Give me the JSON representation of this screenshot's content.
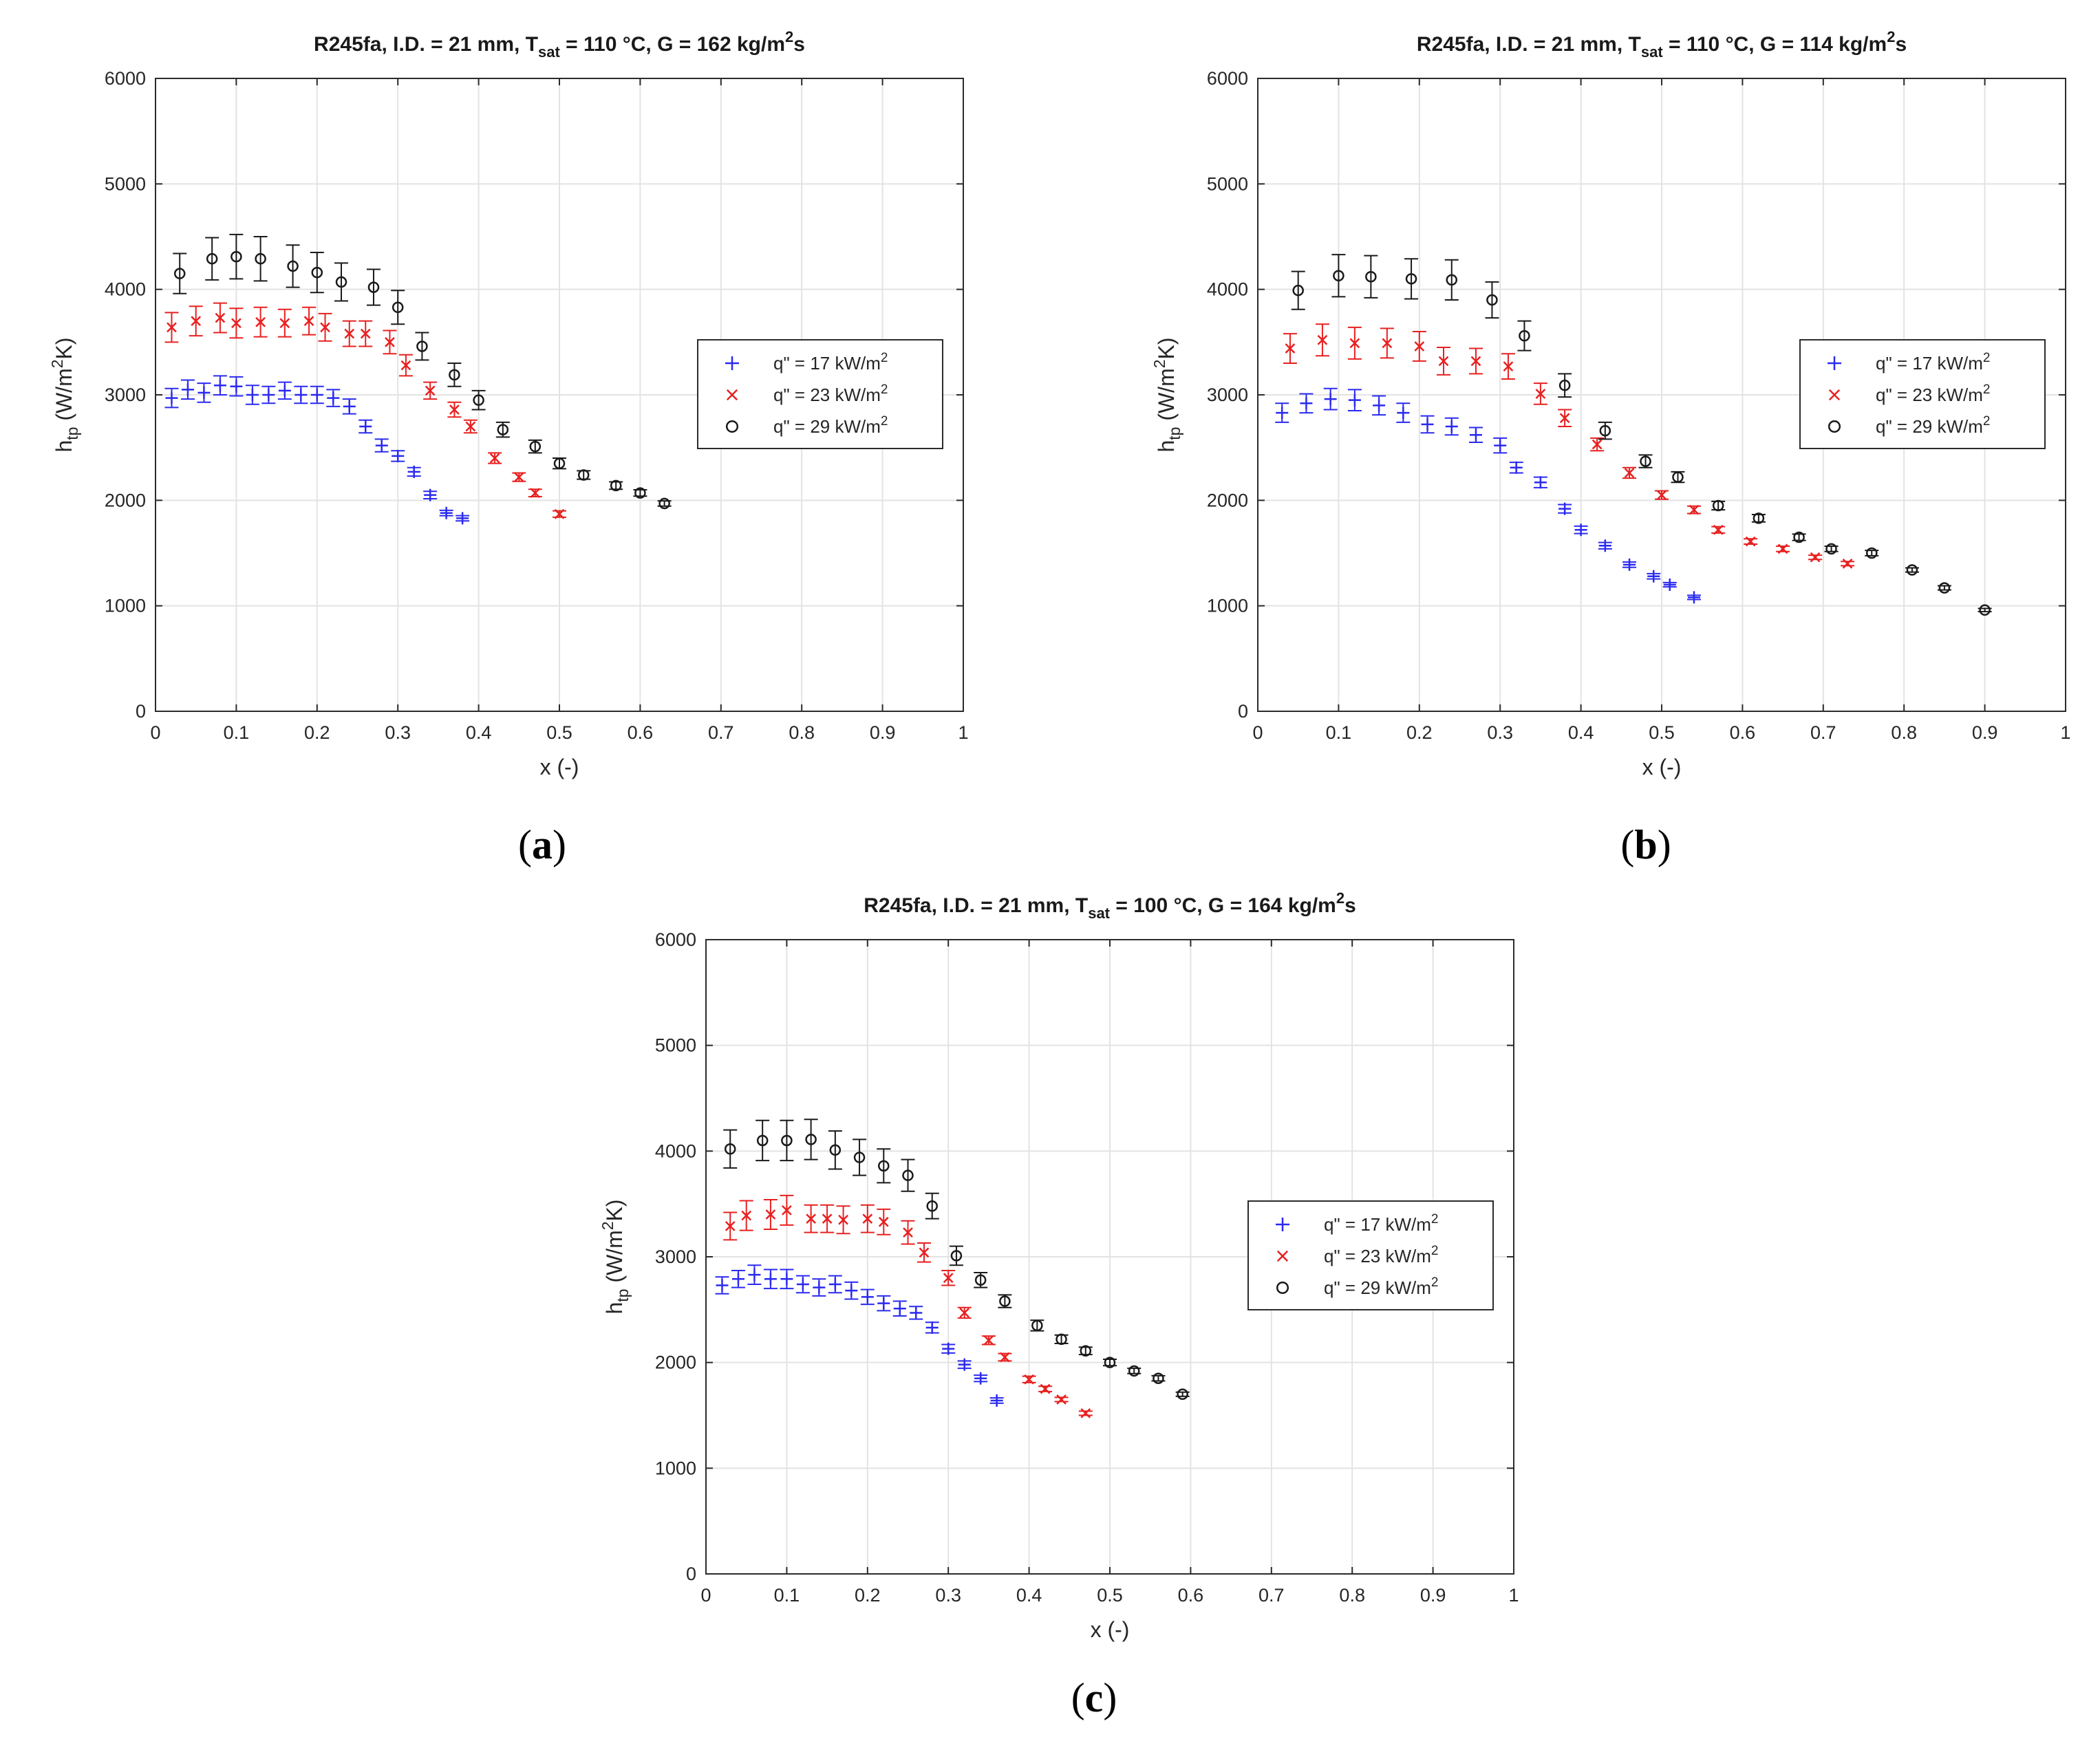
{
  "chart_data": [
    {
      "type": "scatter",
      "panel": "a",
      "caption_letter": "a",
      "title_parts": {
        "pre": "R245fa, I.D. = 21 mm, T",
        "sub": "sat",
        "mid": " = 110 °C, G = 162 kg/m",
        "sup": "2",
        "post": "s"
      },
      "xlabel": "x (-)",
      "ylabel_parts": {
        "pre": "h",
        "sub": "tp",
        "mid": " (W/m",
        "sup": "2",
        "post": "K)"
      },
      "xlim": [
        0,
        1
      ],
      "ylim": [
        0,
        6000
      ],
      "xticks": [
        "0",
        "0.1",
        "0.2",
        "0.3",
        "0.4",
        "0.5",
        "0.6",
        "0.7",
        "0.8",
        "0.9",
        "1"
      ],
      "yticks": [
        "0",
        "1000",
        "2000",
        "3000",
        "4000",
        "5000",
        "6000"
      ],
      "grid": true,
      "legend_position": "right-middle",
      "series": [
        {
          "name": "q\" = 17 kW/m",
          "sup": "2",
          "marker": "plus",
          "color": "#2a2af0",
          "x": [
            0.02,
            0.04,
            0.06,
            0.08,
            0.1,
            0.12,
            0.14,
            0.16,
            0.18,
            0.2,
            0.22,
            0.24,
            0.26,
            0.28,
            0.3,
            0.32,
            0.34,
            0.36,
            0.38
          ],
          "y": [
            2970,
            3050,
            3020,
            3090,
            3080,
            3000,
            3000,
            3040,
            3000,
            3000,
            2970,
            2890,
            2700,
            2520,
            2420,
            2270,
            2050,
            1880,
            1830
          ],
          "err": [
            90,
            90,
            90,
            90,
            90,
            90,
            80,
            80,
            80,
            80,
            80,
            70,
            60,
            60,
            50,
            40,
            35,
            25,
            25
          ]
        },
        {
          "name": "q\" = 23 kW/m",
          "sup": "2",
          "marker": "x",
          "color": "#e82020",
          "x": [
            0.02,
            0.05,
            0.08,
            0.1,
            0.13,
            0.16,
            0.19,
            0.21,
            0.24,
            0.26,
            0.29,
            0.31,
            0.34,
            0.37,
            0.39,
            0.42,
            0.45,
            0.47,
            0.5
          ],
          "y": [
            3640,
            3700,
            3730,
            3680,
            3690,
            3680,
            3700,
            3640,
            3580,
            3580,
            3500,
            3280,
            3040,
            2860,
            2700,
            2400,
            2220,
            2070,
            1870
          ],
          "err": [
            140,
            140,
            140,
            140,
            140,
            130,
            130,
            130,
            120,
            120,
            110,
            100,
            80,
            70,
            60,
            50,
            40,
            35,
            30
          ]
        },
        {
          "name": "q\" = 29 kW/m",
          "sup": "2",
          "marker": "circle",
          "color": "#1a1a1a",
          "x": [
            0.03,
            0.07,
            0.1,
            0.13,
            0.17,
            0.2,
            0.23,
            0.27,
            0.3,
            0.33,
            0.37,
            0.4,
            0.43,
            0.47,
            0.5,
            0.53,
            0.57,
            0.6,
            0.63
          ],
          "y": [
            4150,
            4290,
            4310,
            4290,
            4220,
            4160,
            4070,
            4020,
            3830,
            3460,
            3190,
            2950,
            2670,
            2510,
            2350,
            2240,
            2140,
            2070,
            1970
          ],
          "err": [
            190,
            200,
            210,
            210,
            200,
            190,
            180,
            170,
            160,
            130,
            110,
            90,
            70,
            60,
            50,
            40,
            35,
            30,
            25
          ]
        }
      ]
    },
    {
      "type": "scatter",
      "panel": "b",
      "caption_letter": "b",
      "title_parts": {
        "pre": "R245fa, I.D. = 21 mm, T",
        "sub": "sat",
        "mid": " = 110 °C, G = 114 kg/m",
        "sup": "2",
        "post": "s"
      },
      "xlabel": "x (-)",
      "ylabel_parts": {
        "pre": "h",
        "sub": "tp",
        "mid": " (W/m",
        "sup": "2",
        "post": "K)"
      },
      "xlim": [
        0,
        1
      ],
      "ylim": [
        0,
        6000
      ],
      "xticks": [
        "0",
        "0.1",
        "0.2",
        "0.3",
        "0.4",
        "0.5",
        "0.6",
        "0.7",
        "0.8",
        "0.9",
        "1"
      ],
      "yticks": [
        "0",
        "1000",
        "2000",
        "3000",
        "4000",
        "5000",
        "6000"
      ],
      "grid": true,
      "legend_position": "right-upper",
      "series": [
        {
          "name": "q\" = 17 kW/m",
          "sup": "2",
          "marker": "plus",
          "color": "#2a2af0",
          "x": [
            0.03,
            0.06,
            0.09,
            0.12,
            0.15,
            0.18,
            0.21,
            0.24,
            0.27,
            0.3,
            0.32,
            0.35,
            0.38,
            0.4,
            0.43,
            0.46,
            0.49,
            0.51,
            0.54
          ],
          "y": [
            2830,
            2920,
            2960,
            2950,
            2900,
            2830,
            2720,
            2700,
            2620,
            2520,
            2310,
            2170,
            1920,
            1720,
            1570,
            1390,
            1280,
            1200,
            1080
          ],
          "err": [
            90,
            90,
            100,
            100,
            90,
            90,
            80,
            80,
            70,
            70,
            50,
            50,
            40,
            35,
            30,
            25,
            25,
            20,
            20
          ]
        },
        {
          "name": "q\" = 23 kW/m",
          "sup": "2",
          "marker": "x",
          "color": "#e82020",
          "x": [
            0.04,
            0.08,
            0.12,
            0.16,
            0.2,
            0.23,
            0.27,
            0.31,
            0.35,
            0.38,
            0.42,
            0.46,
            0.5,
            0.54,
            0.57,
            0.61,
            0.65,
            0.69,
            0.73
          ],
          "y": [
            3440,
            3520,
            3490,
            3490,
            3460,
            3320,
            3320,
            3270,
            3010,
            2780,
            2530,
            2260,
            2050,
            1910,
            1720,
            1610,
            1540,
            1460,
            1400
          ],
          "err": [
            140,
            150,
            150,
            140,
            140,
            130,
            120,
            120,
            100,
            80,
            60,
            50,
            40,
            35,
            30,
            25,
            25,
            20,
            20
          ]
        },
        {
          "name": "q\" = 29 kW/m",
          "sup": "2",
          "marker": "circle",
          "color": "#1a1a1a",
          "x": [
            0.05,
            0.1,
            0.14,
            0.19,
            0.24,
            0.29,
            0.33,
            0.38,
            0.43,
            0.48,
            0.52,
            0.57,
            0.62,
            0.67,
            0.71,
            0.76,
            0.81,
            0.85,
            0.9
          ],
          "y": [
            3990,
            4130,
            4120,
            4100,
            4090,
            3900,
            3560,
            3090,
            2660,
            2370,
            2220,
            1950,
            1830,
            1650,
            1540,
            1500,
            1340,
            1170,
            960
          ],
          "err": [
            180,
            200,
            200,
            190,
            190,
            170,
            140,
            110,
            80,
            60,
            50,
            40,
            35,
            30,
            25,
            25,
            20,
            20,
            15
          ]
        }
      ]
    },
    {
      "type": "scatter",
      "panel": "c",
      "caption_letter": "c",
      "title_parts": {
        "pre": "R245fa, I.D. = 21 mm, T",
        "sub": "sat",
        "mid": " = 100 °C, G = 164 kg/m",
        "sup": "2",
        "post": "s"
      },
      "xlabel": "x (-)",
      "ylabel_parts": {
        "pre": "h",
        "sub": "tp",
        "mid": " (W/m",
        "sup": "2",
        "post": "K)"
      },
      "xlim": [
        0,
        1
      ],
      "ylim": [
        0,
        6000
      ],
      "xticks": [
        "0",
        "0.1",
        "0.2",
        "0.3",
        "0.4",
        "0.5",
        "0.6",
        "0.7",
        "0.8",
        "0.9",
        "1"
      ],
      "yticks": [
        "0",
        "1000",
        "2000",
        "3000",
        "4000",
        "5000",
        "6000"
      ],
      "grid": true,
      "legend_position": "right-middle",
      "series": [
        {
          "name": "q\" = 17 kW/m",
          "sup": "2",
          "marker": "plus",
          "color": "#2a2af0",
          "x": [
            0.02,
            0.04,
            0.06,
            0.08,
            0.1,
            0.12,
            0.14,
            0.16,
            0.18,
            0.2,
            0.22,
            0.24,
            0.26,
            0.28,
            0.3,
            0.32,
            0.34,
            0.36
          ],
          "y": [
            2730,
            2790,
            2830,
            2790,
            2790,
            2740,
            2710,
            2740,
            2680,
            2620,
            2560,
            2510,
            2470,
            2330,
            2130,
            1980,
            1850,
            1640
          ],
          "err": [
            80,
            80,
            90,
            90,
            90,
            80,
            80,
            80,
            80,
            70,
            70,
            70,
            60,
            50,
            40,
            35,
            30,
            25
          ]
        },
        {
          "name": "q\" = 23 kW/m",
          "sup": "2",
          "marker": "x",
          "color": "#e82020",
          "x": [
            0.03,
            0.05,
            0.08,
            0.1,
            0.13,
            0.15,
            0.17,
            0.2,
            0.22,
            0.25,
            0.27,
            0.3,
            0.32,
            0.35,
            0.37,
            0.4,
            0.42,
            0.44,
            0.47
          ],
          "y": [
            3290,
            3390,
            3400,
            3440,
            3360,
            3360,
            3350,
            3360,
            3330,
            3230,
            3040,
            2800,
            2470,
            2210,
            2050,
            1840,
            1750,
            1650,
            1520
          ],
          "err": [
            130,
            140,
            140,
            140,
            130,
            130,
            130,
            130,
            120,
            110,
            90,
            70,
            50,
            40,
            35,
            30,
            25,
            20,
            20
          ]
        },
        {
          "name": "q\" = 29 kW/m",
          "sup": "2",
          "marker": "circle",
          "color": "#1a1a1a",
          "x": [
            0.03,
            0.07,
            0.1,
            0.13,
            0.16,
            0.19,
            0.22,
            0.25,
            0.28,
            0.31,
            0.34,
            0.37,
            0.41,
            0.44,
            0.47,
            0.5,
            0.53,
            0.56,
            0.59
          ],
          "y": [
            4020,
            4100,
            4100,
            4110,
            4010,
            3940,
            3860,
            3770,
            3480,
            3010,
            2780,
            2580,
            2350,
            2220,
            2110,
            2000,
            1920,
            1850,
            1700
          ],
          "err": [
            180,
            190,
            190,
            190,
            180,
            170,
            160,
            150,
            120,
            90,
            70,
            60,
            50,
            40,
            35,
            30,
            25,
            25,
            20
          ]
        }
      ]
    }
  ]
}
